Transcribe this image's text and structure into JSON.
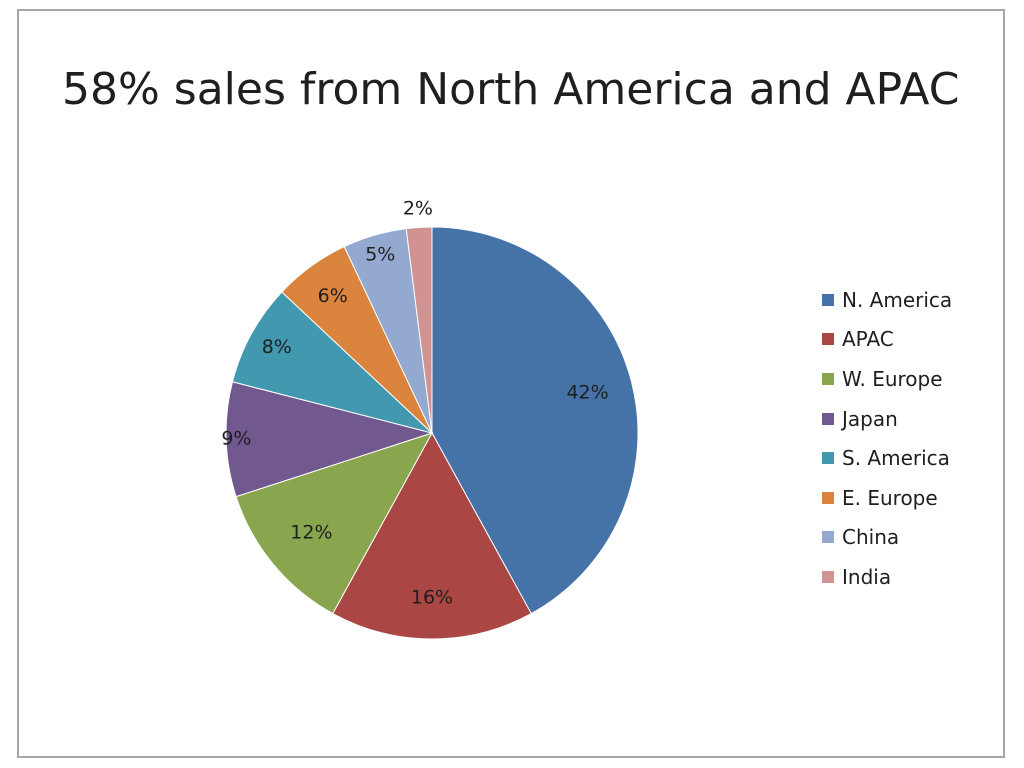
{
  "title": "58% sales from North America and APAC",
  "chart_data": {
    "type": "pie",
    "title": "58% sales from North America and APAC",
    "legend_position": "right",
    "start_angle_deg": 0,
    "direction": "clockwise",
    "slices": [
      {
        "name": "N. America",
        "value": 42,
        "label": "42%",
        "color": "#4572A7"
      },
      {
        "name": "APAC",
        "value": 16,
        "label": "16%",
        "color": "#AA4643"
      },
      {
        "name": "W. Europe",
        "value": 12,
        "label": "12%",
        "color": "#89A54E"
      },
      {
        "name": "Japan",
        "value": 9,
        "label": "9%",
        "color": "#71588F"
      },
      {
        "name": "S. America",
        "value": 8,
        "label": "8%",
        "color": "#4198AF"
      },
      {
        "name": "E. Europe",
        "value": 6,
        "label": "6%",
        "color": "#DB843D"
      },
      {
        "name": "China",
        "value": 5,
        "label": "5%",
        "color": "#93A9CF"
      },
      {
        "name": "India",
        "value": 2,
        "label": "2%",
        "color": "#D19392"
      }
    ]
  }
}
